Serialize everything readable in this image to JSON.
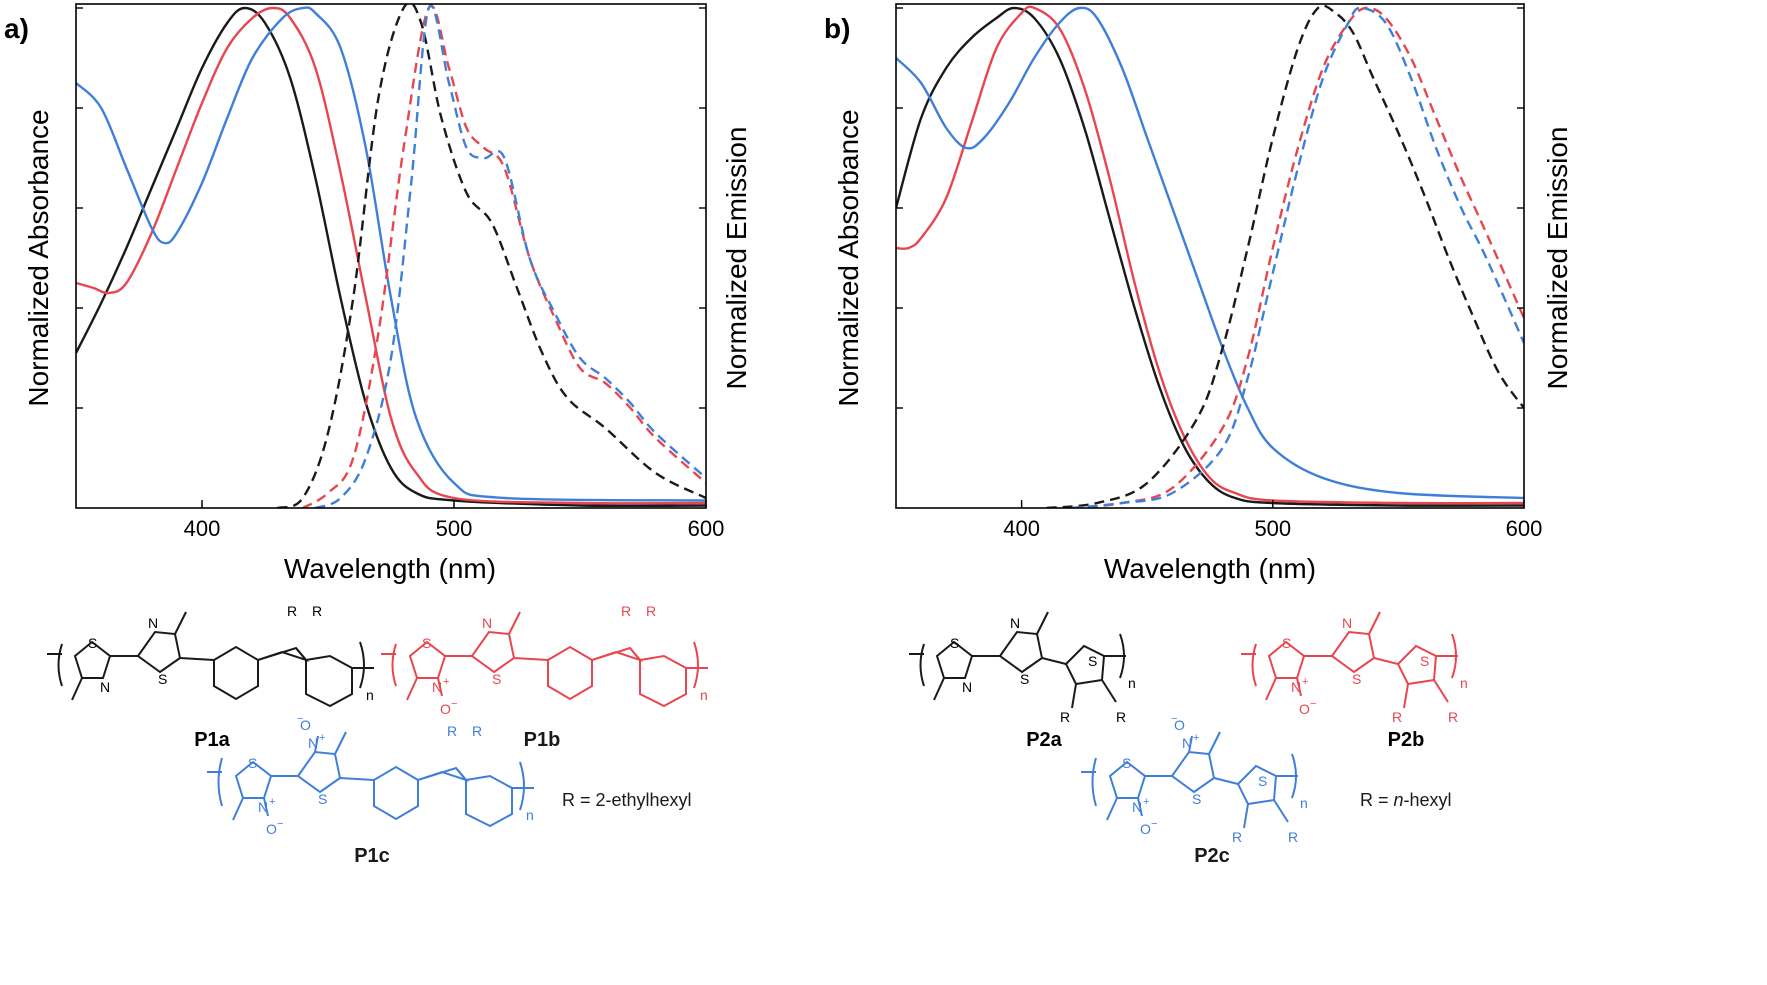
{
  "colors": {
    "P1a": "#1a1a1a",
    "P1b": "#e8464f",
    "P1c": "#3f7fd9",
    "P2a": "#1a1a1a",
    "P2b": "#e8464f",
    "P2c": "#3f7fd9",
    "axis": "#000000"
  },
  "chart_data": [
    {
      "type": "line",
      "panel_label": "a)",
      "xlabel": "Wavelength (nm)",
      "ylabel_left": "Normalized Absorbance",
      "ylabel_right": "Normalized Emission",
      "xlim": [
        350,
        600
      ],
      "ylim": [
        0,
        1
      ],
      "xticks": [
        400,
        500,
        600
      ],
      "y_minor_ticks": [
        0.2,
        0.4,
        0.6,
        0.8
      ],
      "series": [
        {
          "name": "P1a",
          "kind": "absorbance",
          "x": [
            350,
            360,
            370,
            380,
            390,
            400,
            410,
            417,
            425,
            435,
            445,
            455,
            465,
            475,
            485,
            500,
            550,
            600
          ],
          "y": [
            0.31,
            0.41,
            0.52,
            0.64,
            0.76,
            0.88,
            0.97,
            1.0,
            0.97,
            0.86,
            0.66,
            0.42,
            0.21,
            0.08,
            0.03,
            0.015,
            0.005,
            0.005
          ]
        },
        {
          "name": "P1b",
          "kind": "absorbance",
          "x": [
            350,
            357,
            363,
            370,
            380,
            390,
            400,
            410,
            420,
            428,
            435,
            445,
            455,
            465,
            475,
            485,
            500,
            550,
            600
          ],
          "y": [
            0.45,
            0.44,
            0.43,
            0.45,
            0.55,
            0.68,
            0.81,
            0.92,
            0.98,
            1.0,
            0.98,
            0.88,
            0.67,
            0.42,
            0.18,
            0.07,
            0.02,
            0.01,
            0.01
          ]
        },
        {
          "name": "P1c",
          "kind": "absorbance",
          "x": [
            350,
            360,
            370,
            380,
            385,
            390,
            400,
            410,
            420,
            432,
            440,
            445,
            455,
            465,
            475,
            485,
            500,
            520,
            600
          ],
          "y": [
            0.85,
            0.8,
            0.68,
            0.56,
            0.53,
            0.55,
            0.65,
            0.78,
            0.9,
            0.98,
            1.0,
            0.99,
            0.92,
            0.72,
            0.42,
            0.18,
            0.05,
            0.02,
            0.015
          ]
        },
        {
          "name": "P1a",
          "kind": "emission",
          "x": [
            430,
            440,
            450,
            460,
            470,
            480,
            487,
            495,
            505,
            515,
            525,
            535,
            545,
            560,
            580,
            600
          ],
          "y": [
            0.0,
            0.02,
            0.15,
            0.42,
            0.82,
            1.0,
            0.97,
            0.78,
            0.63,
            0.57,
            0.44,
            0.31,
            0.22,
            0.16,
            0.07,
            0.02
          ]
        },
        {
          "name": "P1b",
          "kind": "emission",
          "x": [
            440,
            450,
            460,
            470,
            480,
            490,
            498,
            505,
            512,
            520,
            530,
            540,
            550,
            560,
            570,
            580,
            600
          ],
          "y": [
            0.0,
            0.03,
            0.1,
            0.35,
            0.72,
            1.0,
            0.88,
            0.76,
            0.72,
            0.68,
            0.5,
            0.38,
            0.28,
            0.25,
            0.2,
            0.14,
            0.05
          ]
        },
        {
          "name": "P1c",
          "kind": "emission",
          "x": [
            445,
            455,
            465,
            475,
            483,
            490,
            498,
            505,
            512,
            520,
            530,
            540,
            550,
            560,
            570,
            580,
            600
          ],
          "y": [
            0.0,
            0.02,
            0.1,
            0.3,
            0.65,
            1.0,
            0.85,
            0.72,
            0.7,
            0.7,
            0.5,
            0.39,
            0.3,
            0.26,
            0.21,
            0.15,
            0.06
          ]
        }
      ]
    },
    {
      "type": "line",
      "panel_label": "b)",
      "xlabel": "Wavelength (nm)",
      "ylabel_left": "Normalized Absorbance",
      "ylabel_right": "Normalized Emission",
      "xlim": [
        350,
        600
      ],
      "ylim": [
        0,
        1
      ],
      "xticks": [
        400,
        500,
        600
      ],
      "y_minor_ticks": [
        0.2,
        0.4,
        0.6,
        0.8
      ],
      "series": [
        {
          "name": "P2a",
          "kind": "absorbance",
          "x": [
            350,
            360,
            370,
            380,
            390,
            397,
            405,
            415,
            425,
            435,
            445,
            455,
            465,
            475,
            485,
            500,
            550,
            600
          ],
          "y": [
            0.6,
            0.78,
            0.88,
            0.94,
            0.98,
            1.0,
            0.98,
            0.9,
            0.76,
            0.58,
            0.4,
            0.24,
            0.12,
            0.05,
            0.02,
            0.01,
            0.005,
            0.005
          ]
        },
        {
          "name": "P2b",
          "kind": "absorbance",
          "x": [
            350,
            355,
            360,
            370,
            380,
            390,
            400,
            405,
            415,
            425,
            435,
            445,
            455,
            465,
            475,
            485,
            500,
            550,
            600
          ],
          "y": [
            0.52,
            0.52,
            0.54,
            0.62,
            0.77,
            0.92,
            0.99,
            1.0,
            0.96,
            0.84,
            0.66,
            0.45,
            0.27,
            0.14,
            0.06,
            0.03,
            0.015,
            0.01,
            0.01
          ]
        },
        {
          "name": "P2c",
          "kind": "absorbance",
          "x": [
            350,
            360,
            370,
            378,
            385,
            395,
            405,
            415,
            423,
            430,
            440,
            450,
            460,
            470,
            480,
            490,
            500,
            520,
            550,
            600
          ],
          "y": [
            0.9,
            0.85,
            0.76,
            0.72,
            0.74,
            0.81,
            0.9,
            0.97,
            1.0,
            0.98,
            0.88,
            0.74,
            0.6,
            0.46,
            0.32,
            0.2,
            0.12,
            0.06,
            0.03,
            0.02
          ]
        },
        {
          "name": "P2a",
          "kind": "emission",
          "x": [
            410,
            430,
            450,
            470,
            480,
            490,
            500,
            510,
            518,
            525,
            532,
            540,
            550,
            560,
            570,
            580,
            590,
            600
          ],
          "y": [
            0.0,
            0.01,
            0.05,
            0.18,
            0.32,
            0.52,
            0.74,
            0.92,
            1.0,
            0.99,
            0.95,
            0.86,
            0.75,
            0.63,
            0.5,
            0.38,
            0.27,
            0.2
          ]
        },
        {
          "name": "P2b",
          "kind": "emission",
          "x": [
            420,
            440,
            460,
            480,
            490,
            500,
            510,
            520,
            530,
            537,
            545,
            555,
            565,
            575,
            585,
            600
          ],
          "y": [
            0.0,
            0.01,
            0.04,
            0.16,
            0.3,
            0.52,
            0.72,
            0.88,
            0.97,
            1.0,
            0.98,
            0.9,
            0.78,
            0.66,
            0.55,
            0.38
          ]
        },
        {
          "name": "P2c",
          "kind": "emission",
          "x": [
            420,
            440,
            460,
            480,
            490,
            500,
            510,
            520,
            530,
            535,
            545,
            555,
            565,
            575,
            585,
            600
          ],
          "y": [
            0.0,
            0.01,
            0.03,
            0.12,
            0.26,
            0.47,
            0.68,
            0.86,
            0.97,
            1.0,
            0.97,
            0.86,
            0.72,
            0.6,
            0.5,
            0.33
          ]
        }
      ]
    }
  ],
  "structures": {
    "P1a": {
      "label": "P1a",
      "subscript": "n",
      "atoms": [
        "S",
        "N",
        "N",
        "S",
        "R",
        "R"
      ]
    },
    "P1b": {
      "label": "P1b",
      "subscript": "n",
      "atoms": [
        "S",
        "N",
        "N",
        "+",
        "O",
        "−",
        "S",
        "R",
        "R"
      ]
    },
    "P1c": {
      "label": "P1c",
      "subscript": "n",
      "atoms": [
        "O",
        "−",
        "N",
        "+",
        "S",
        "N",
        "+",
        "O",
        "−",
        "S",
        "R",
        "R"
      ]
    },
    "P2a": {
      "label": "P2a",
      "subscript": "n",
      "atoms": [
        "S",
        "N",
        "N",
        "S",
        "S",
        "R",
        "R"
      ]
    },
    "P2b": {
      "label": "P2b",
      "subscript": "n",
      "atoms": [
        "S",
        "N",
        "N",
        "+",
        "O",
        "−",
        "S",
        "S",
        "R",
        "R"
      ]
    },
    "P2c": {
      "label": "P2c",
      "subscript": "n",
      "atoms": [
        "O",
        "−",
        "N",
        "+",
        "S",
        "N",
        "+",
        "O",
        "−",
        "S",
        "S",
        "R",
        "R"
      ]
    },
    "r_note_a": "R = 2-ethylhexyl",
    "r_note_b_prefix": "R = ",
    "r_note_b_italic": "n",
    "r_note_b_suffix": "-hexyl"
  }
}
